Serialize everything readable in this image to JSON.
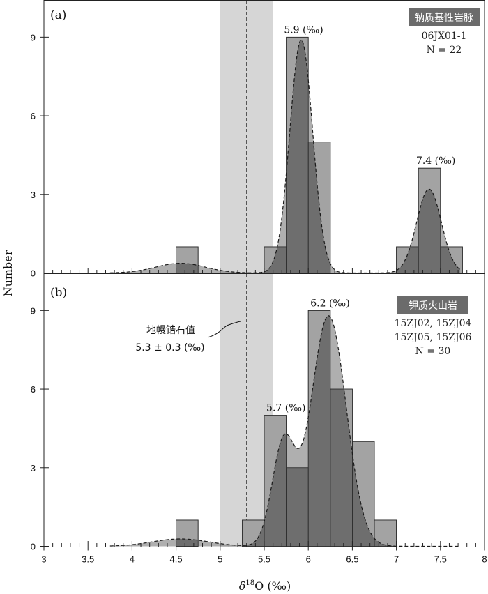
{
  "chart_data": [
    {
      "type": "histogram",
      "panel_label": "(a)",
      "badge": "钠质基性岩脉",
      "info_lines": [
        "06JX01-1",
        "N = 22"
      ],
      "bin_width": 0.25,
      "bins": [
        {
          "x0": 4.5,
          "count": 1
        },
        {
          "x0": 5.5,
          "count": 1
        },
        {
          "x0": 5.75,
          "count": 9
        },
        {
          "x0": 6.0,
          "count": 5
        },
        {
          "x0": 7.0,
          "count": 1
        },
        {
          "x0": 7.25,
          "count": 4
        },
        {
          "x0": 7.5,
          "count": 1
        }
      ],
      "kde": {
        "components": [
          {
            "mu": 4.55,
            "sigma": 0.28,
            "amp": 0.37
          },
          {
            "mu": 5.92,
            "sigma": 0.13,
            "amp": 8.9
          },
          {
            "mu": 7.37,
            "sigma": 0.14,
            "amp": 3.2
          }
        ]
      },
      "peak_labels": [
        {
          "text": "5.9 (‰)",
          "x": 5.9,
          "y": 9.0
        },
        {
          "text": "7.4 (‰)",
          "x": 7.4,
          "y": 4.0
        }
      ],
      "xlim": [
        3,
        8
      ],
      "ylim": [
        0,
        10.3
      ],
      "yticks": [
        0,
        3,
        6,
        9
      ]
    },
    {
      "type": "histogram",
      "panel_label": "(b)",
      "badge": "钾质火山岩",
      "info_lines": [
        "15ZJ02, 15ZJ04",
        "15ZJ05, 15ZJ06",
        "N = 30"
      ],
      "bin_width": 0.25,
      "bins": [
        {
          "x0": 4.5,
          "count": 1
        },
        {
          "x0": 5.25,
          "count": 1
        },
        {
          "x0": 5.5,
          "count": 5
        },
        {
          "x0": 5.75,
          "count": 3
        },
        {
          "x0": 6.0,
          "count": 9
        },
        {
          "x0": 6.25,
          "count": 6
        },
        {
          "x0": 6.5,
          "count": 4
        },
        {
          "x0": 6.75,
          "count": 1
        }
      ],
      "kde": {
        "components": [
          {
            "mu": 4.55,
            "sigma": 0.32,
            "amp": 0.28
          },
          {
            "mu": 5.72,
            "sigma": 0.13,
            "amp": 3.9
          },
          {
            "mu": 6.23,
            "sigma": 0.2,
            "amp": 8.8
          }
        ]
      },
      "peak_labels": [
        {
          "text": "5.7 (‰)",
          "x": 5.7,
          "y": 5.0
        },
        {
          "text": "6.2 (‰)",
          "x": 6.2,
          "y": 9.0
        }
      ],
      "xlim": [
        3,
        8
      ],
      "ylim": [
        0,
        10.3
      ],
      "yticks": [
        0,
        3,
        6,
        9
      ],
      "xticks": [
        3,
        3.5,
        4,
        4.5,
        5,
        5.5,
        6,
        6.5,
        7,
        7.5,
        8
      ],
      "xlabel": "δ18O (‰)"
    }
  ],
  "ylabel": "Number",
  "xlabel_main": "δ",
  "xlabel_sup": "18",
  "xlabel_rest": "O (‰)",
  "mantle": {
    "label_line1": "地幔锆石值",
    "label_line2": "5.3 ± 0.3 (‰)",
    "center": 5.3,
    "half_range": 0.3
  },
  "colors": {
    "bar_light": "#a3a3a3",
    "bar_dark": "#6e6e6e",
    "band": "#d6d6d6",
    "badge_bg": "#6b6b6b"
  }
}
